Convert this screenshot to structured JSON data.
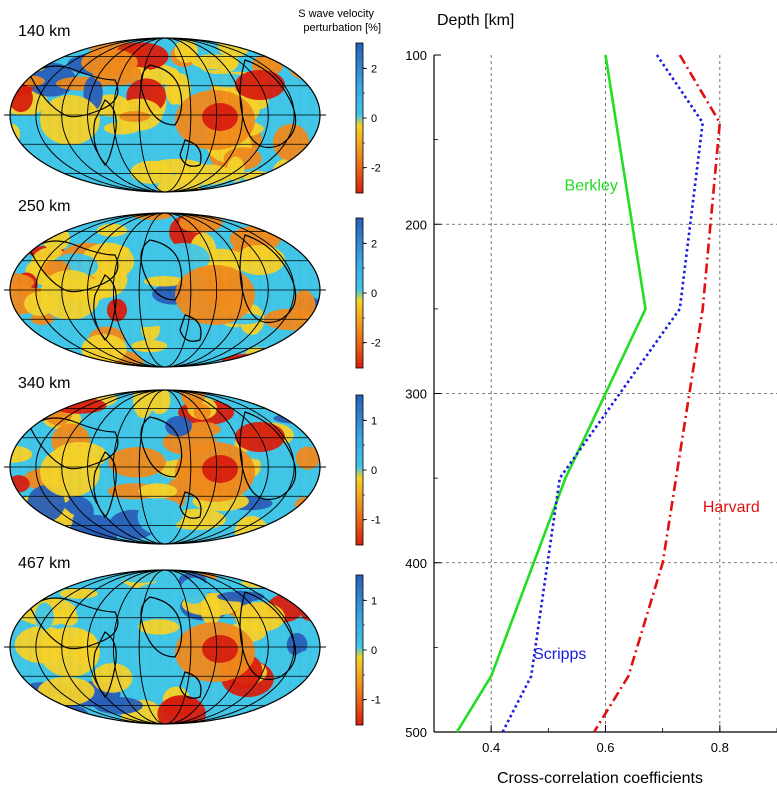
{
  "figure": {
    "colorbar_title_line1": "S wave velocity",
    "colorbar_title_line2": "perturbation [%]"
  },
  "maps": [
    {
      "depth_label": "140 km",
      "ticks": [
        "2",
        "0",
        "-2"
      ]
    },
    {
      "depth_label": "250 km",
      "ticks": [
        "2",
        "0",
        "-2"
      ]
    },
    {
      "depth_label": "340 km",
      "ticks": [
        "1",
        "0",
        "-1"
      ]
    },
    {
      "depth_label": "467 km",
      "ticks": [
        "1",
        "0",
        "-1"
      ]
    }
  ],
  "colors": {
    "blue": "#2a5fb8",
    "cyan": "#41c6e8",
    "yellow": "#f4d22a",
    "orange": "#ef8a1e",
    "red": "#d81f0f",
    "berkley": "#22dd22",
    "scripps": "#1a1ae0",
    "harvard": "#e01010"
  },
  "chart_data": {
    "type": "line",
    "ylabel": "Depth [km]",
    "xlabel": "Cross-correlation coefficients",
    "xlim": [
      0.3,
      0.9
    ],
    "ylim": [
      100,
      500
    ],
    "y_inverted": true,
    "grid": true,
    "x_ticks": [
      "0.4",
      "0.6",
      "0.8"
    ],
    "y_ticks": [
      "100",
      "200",
      "300",
      "400",
      "500"
    ],
    "series": [
      {
        "name": "Berkley",
        "style": "solid",
        "color": "#22dd22",
        "points": [
          [
            0.6,
            100
          ],
          [
            0.67,
            250
          ],
          [
            0.53,
            350
          ],
          [
            0.4,
            467
          ],
          [
            0.34,
            500
          ]
        ]
      },
      {
        "name": "Scripps",
        "style": "dotted",
        "color": "#1a1ae0",
        "points": [
          [
            0.69,
            100
          ],
          [
            0.77,
            140
          ],
          [
            0.73,
            250
          ],
          [
            0.52,
            350
          ],
          [
            0.47,
            467
          ],
          [
            0.42,
            500
          ]
        ]
      },
      {
        "name": "Harvard",
        "style": "dashdot",
        "color": "#e01010",
        "points": [
          [
            0.73,
            100
          ],
          [
            0.8,
            140
          ],
          [
            0.77,
            250
          ],
          [
            0.7,
            400
          ],
          [
            0.64,
            467
          ],
          [
            0.58,
            500
          ]
        ]
      }
    ]
  }
}
